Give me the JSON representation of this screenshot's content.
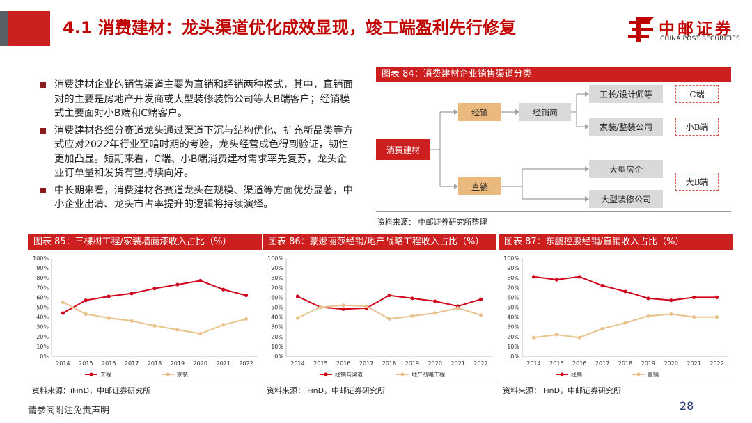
{
  "header": {
    "title": "4.1 消费建材：龙头渠道优化成效显现，竣工端盈利先行修复",
    "logo_cn": "中邮证券",
    "logo_en": "CHINA POST SECURITIES",
    "logo_icon": "china-post-emblem",
    "accent_red": "#cc1f1f",
    "title_red": "#c00000"
  },
  "bullets": [
    "消费建材企业的销售渠道主要为直销和经销两种模式，其中，直销面对的主要是房地产开发商或大型装修装饰公司等大B端客户；经销模式主要面对小B端和C端客户。",
    "消费建材各细分赛道龙头通过渠道下沉与结构优化、扩充新品类等方式应对2022年行业至暗时期的考验，龙头经营成色得到验证，韧性更加凸显。短期来看，C端、小B端消费建材需求率先复苏，龙头企业订单量和发货有望持续向好。",
    "中长期来看，消费建材各赛道龙头在规模、渠道等方面优势显著，中小企业出清、龙头市占率提升的逻辑将持续演绎。"
  ],
  "fig84": {
    "title": "图表 84：消费建材企业销售渠道分类",
    "source": "资料来源：    中邮证券研究所整理",
    "nodes": {
      "root": "消费建材",
      "distribution": "经销",
      "direct": "直销",
      "dealer": "经销商",
      "designer": "工长/设计师等",
      "decoration": "家装/整装公司",
      "developer": "大型房企",
      "decor_company": "大型装修公司",
      "c_end": "C端",
      "small_b": "小B端",
      "big_b": "大B端"
    }
  },
  "charts": [
    {
      "title": "图表 85：三棵树工程/家装墙面漆收入占比（%）",
      "source": "资料来源：iFinD，中邮证券研究所",
      "chart_data": {
        "type": "line",
        "categories": [
          "2014",
          "2015",
          "2016",
          "2017",
          "2018",
          "2019",
          "2020",
          "2021",
          "2022"
        ],
        "ylim": [
          0,
          100
        ],
        "yticks": [
          "0%",
          "10%",
          "20%",
          "30%",
          "40%",
          "50%",
          "60%",
          "70%",
          "80%",
          "90%",
          "100%"
        ],
        "series": [
          {
            "name": "工程",
            "color": "#d0021b",
            "values": [
              44,
              57,
              61,
              64,
              69,
              73,
              77,
              68,
              62
            ]
          },
          {
            "name": "家装",
            "color": "#e9c28b",
            "values": [
              55,
              43,
              39,
              36,
              31,
              27,
              23,
              32,
              38
            ]
          }
        ]
      }
    },
    {
      "title": "图表 86：蒙娜丽莎经销/地产战略工程收入占比（%）",
      "source": "资料来源：iFinD，中邮证券研究所",
      "chart_data": {
        "type": "line",
        "categories": [
          "2014",
          "2015",
          "2016",
          "2017",
          "2018",
          "2019",
          "2020",
          "2021",
          "2022"
        ],
        "ylim": [
          0,
          100
        ],
        "yticks": [
          "0%",
          "10%",
          "20%",
          "30%",
          "40%",
          "50%",
          "60%",
          "70%",
          "80%",
          "90%",
          "100%"
        ],
        "series": [
          {
            "name": "经销商渠道",
            "color": "#d0021b",
            "values": [
              61,
              50,
              48,
              49,
              62,
              59,
              56,
              51,
              58
            ]
          },
          {
            "name": "地产战略工程",
            "color": "#e9c28b",
            "values": [
              39,
              50,
              52,
              51,
              38,
              41,
              44,
              49,
              42
            ]
          }
        ]
      }
    },
    {
      "title": "图表 87：东鹏控股经销/直销收入占比（%）",
      "source": "资料来源：iFinD，中邮证券研究所",
      "chart_data": {
        "type": "line",
        "categories": [
          "2014",
          "2015",
          "2016",
          "2017",
          "2018",
          "2019",
          "2020",
          "2021",
          "2022"
        ],
        "ylim": [
          0,
          100
        ],
        "yticks": [
          "0%",
          "10%",
          "20%",
          "30%",
          "40%",
          "50%",
          "60%",
          "70%",
          "80%",
          "90%",
          "100%"
        ],
        "series": [
          {
            "name": "经销",
            "color": "#d0021b",
            "values": [
              81,
              78,
              81,
              72,
              66,
              59,
              57,
              60,
              60
            ]
          },
          {
            "name": "直销",
            "color": "#e9c28b",
            "values": [
              19,
              22,
              19,
              28,
              34,
              41,
              43,
              40,
              40
            ]
          }
        ]
      }
    }
  ],
  "footer": {
    "note": "请参阅附注免责声明",
    "page": "28"
  }
}
